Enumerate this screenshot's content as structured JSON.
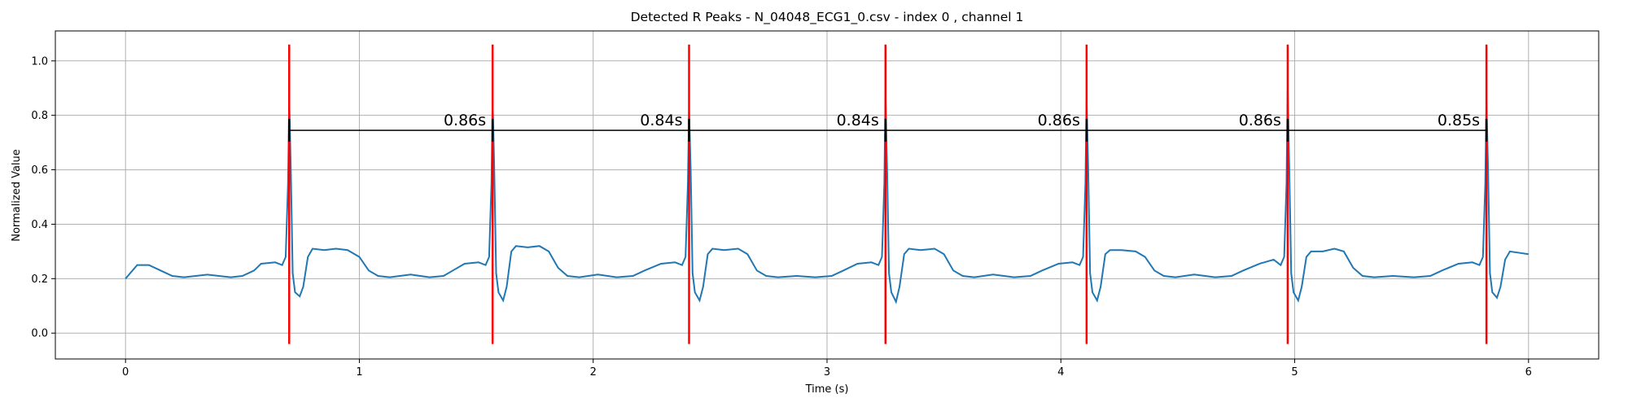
{
  "chart_data": {
    "type": "line",
    "title": "Detected R Peaks - N_04048_ECG1_0.csv - index 0 , channel 1",
    "xlabel": "Time (s)",
    "ylabel": "Normalized Value",
    "xlim": [
      -0.3,
      6.3
    ],
    "ylim": [
      -0.095,
      1.11
    ],
    "xticks": [
      0,
      1,
      2,
      3,
      4,
      5,
      6
    ],
    "yticks": [
      {
        "value": 0,
        "label": "0.0"
      },
      0.2,
      0.4,
      0.6,
      0.8,
      {
        "value": 1,
        "label": "1.0"
      }
    ],
    "grid": true,
    "signal": {
      "color": "#1f77b4",
      "x": [
        0,
        0.02,
        0.05,
        0.1,
        0.15,
        0.2,
        0.25,
        0.35,
        0.45,
        0.5,
        0.55,
        0.58,
        0.64,
        0.67,
        0.685,
        0.695,
        0.7,
        0.707,
        0.715,
        0.725,
        0.745,
        0.76,
        0.78,
        0.8,
        0.85,
        0.9,
        0.95,
        1.0,
        1.04,
        1.08,
        1.13,
        1.22,
        1.3,
        1.36,
        1.4,
        1.45,
        1.51,
        1.54,
        1.555,
        1.565,
        1.57,
        1.577,
        1.585,
        1.595,
        1.615,
        1.63,
        1.65,
        1.67,
        1.72,
        1.77,
        1.81,
        1.85,
        1.89,
        1.94,
        2.02,
        2.1,
        2.17,
        2.22,
        2.29,
        2.35,
        2.38,
        2.395,
        2.405,
        2.41,
        2.417,
        2.425,
        2.435,
        2.455,
        2.47,
        2.49,
        2.51,
        2.56,
        2.62,
        2.66,
        2.7,
        2.74,
        2.79,
        2.87,
        2.95,
        3.02,
        3.07,
        3.13,
        3.19,
        3.22,
        3.235,
        3.245,
        3.25,
        3.257,
        3.265,
        3.275,
        3.295,
        3.31,
        3.33,
        3.35,
        3.4,
        3.46,
        3.5,
        3.54,
        3.58,
        3.63,
        3.71,
        3.8,
        3.87,
        3.92,
        3.99,
        4.05,
        4.08,
        4.095,
        4.105,
        4.11,
        4.117,
        4.125,
        4.135,
        4.155,
        4.17,
        4.19,
        4.21,
        4.26,
        4.32,
        4.36,
        4.4,
        4.44,
        4.49,
        4.57,
        4.66,
        4.73,
        4.78,
        4.85,
        4.91,
        4.94,
        4.955,
        4.965,
        4.97,
        4.977,
        4.985,
        4.995,
        5.015,
        5.03,
        5.05,
        5.07,
        5.12,
        5.17,
        5.21,
        5.25,
        5.29,
        5.34,
        5.42,
        5.51,
        5.58,
        5.63,
        5.7,
        5.76,
        5.79,
        5.805,
        5.815,
        5.82,
        5.827,
        5.835,
        5.845,
        5.865,
        5.88,
        5.9,
        5.92,
        5.96,
        6.0
      ],
      "values": [
        0.2,
        0.22,
        0.25,
        0.25,
        0.23,
        0.21,
        0.205,
        0.215,
        0.205,
        0.21,
        0.23,
        0.255,
        0.26,
        0.25,
        0.28,
        0.55,
        0.86,
        0.6,
        0.22,
        0.15,
        0.135,
        0.17,
        0.28,
        0.31,
        0.305,
        0.31,
        0.305,
        0.28,
        0.23,
        0.21,
        0.205,
        0.215,
        0.205,
        0.21,
        0.23,
        0.255,
        0.26,
        0.25,
        0.28,
        0.55,
        0.86,
        0.6,
        0.22,
        0.15,
        0.12,
        0.17,
        0.3,
        0.32,
        0.315,
        0.32,
        0.3,
        0.24,
        0.21,
        0.205,
        0.215,
        0.205,
        0.21,
        0.23,
        0.255,
        0.26,
        0.25,
        0.28,
        0.55,
        0.82,
        0.6,
        0.22,
        0.15,
        0.12,
        0.17,
        0.29,
        0.31,
        0.305,
        0.31,
        0.29,
        0.23,
        0.21,
        0.205,
        0.21,
        0.205,
        0.21,
        0.23,
        0.255,
        0.26,
        0.25,
        0.28,
        0.55,
        0.88,
        0.6,
        0.22,
        0.15,
        0.115,
        0.17,
        0.29,
        0.31,
        0.305,
        0.31,
        0.29,
        0.23,
        0.21,
        0.205,
        0.215,
        0.205,
        0.21,
        0.23,
        0.255,
        0.26,
        0.25,
        0.28,
        0.55,
        0.86,
        0.6,
        0.22,
        0.15,
        0.12,
        0.17,
        0.29,
        0.305,
        0.305,
        0.3,
        0.28,
        0.23,
        0.21,
        0.205,
        0.215,
        0.205,
        0.21,
        0.23,
        0.255,
        0.27,
        0.25,
        0.28,
        0.55,
        0.9,
        0.6,
        0.22,
        0.15,
        0.12,
        0.17,
        0.28,
        0.3,
        0.3,
        0.31,
        0.3,
        0.24,
        0.21,
        0.205,
        0.21,
        0.205,
        0.21,
        0.23,
        0.255,
        0.26,
        0.25,
        0.28,
        0.55,
        0.85,
        0.6,
        0.22,
        0.15,
        0.13,
        0.17,
        0.27,
        0.3,
        0.295,
        0.29
      ]
    },
    "r_peaks": {
      "color": "#ff0000",
      "x": [
        0.7,
        1.57,
        2.41,
        3.25,
        4.11,
        4.97,
        5.82
      ],
      "ymin": [
        -0.04,
        -0.04,
        -0.04,
        -0.04,
        -0.04,
        -0.04,
        -0.04
      ],
      "ymax": [
        1.06,
        1.06,
        1.06,
        1.06,
        1.06,
        1.06,
        1.06
      ]
    },
    "intervals": {
      "color": "#000000",
      "y": 0.745,
      "labels": [
        "0.86s",
        "0.84s",
        "0.84s",
        "0.86s",
        "0.86s",
        "0.85s"
      ]
    }
  }
}
